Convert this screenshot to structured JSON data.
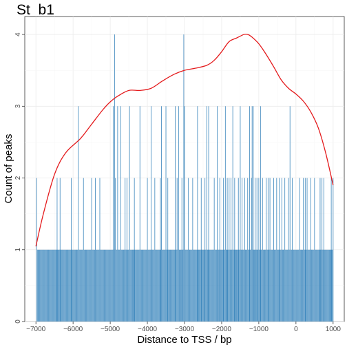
{
  "chart_data": {
    "type": "bar",
    "title": "St_b1",
    "xlabel": "Distance to TSS / bp",
    "ylabel": "Count of peaks",
    "xlim": [
      -7300,
      1300
    ],
    "ylim": [
      0,
      4.25
    ],
    "x_ticks": [
      -7000,
      -6000,
      -5000,
      -4000,
      -3000,
      -2000,
      -1000,
      0,
      1000
    ],
    "x_tick_labels": [
      "−7000",
      "−6000",
      "−5000",
      "−4000",
      "−3000",
      "−2000",
      "−1000",
      "0",
      "1000"
    ],
    "y_ticks": [
      0,
      1,
      2,
      3,
      4
    ],
    "y_tick_labels": [
      "0",
      "1",
      "2",
      "3",
      "4"
    ],
    "grid": true,
    "legend": "none",
    "bar_color": "#2f7fb8",
    "density_color": "#e41a1c",
    "bars": {
      "count_4": [
        -4880,
        -3020
      ],
      "count_3": [
        -5860,
        -4920,
        -4800,
        -4720,
        -4480,
        -4200,
        -3900,
        -3620,
        -3500,
        -3250,
        -3160,
        -3000,
        -2650,
        -2400,
        -2350,
        -2120,
        -1900,
        -1700,
        -1500,
        -1250,
        -1180,
        -1150,
        -950,
        -160
      ],
      "count_2": [
        -6980,
        -6430,
        -6350,
        -6050,
        -5860,
        -5720,
        -5500,
        -5400,
        -5280,
        -4860,
        -4600,
        -4550,
        -4350,
        -4000,
        -3800,
        -3650,
        -3450,
        -3200,
        -3070,
        -2900,
        -2780,
        -2550,
        -2450,
        -2200,
        -2050,
        -1950,
        -1850,
        -1800,
        -1750,
        -1650,
        -1550,
        -1450,
        -1380,
        -1300,
        -1200,
        -1100,
        -1050,
        -1000,
        -900,
        -800,
        -750,
        -700,
        -600,
        -520,
        -450,
        -380,
        -300,
        -200,
        -100,
        100,
        200,
        250,
        300,
        400,
        500,
        650,
        700,
        750,
        950,
        1000
      ],
      "count_1_start": -6980,
      "count_1_end": 1000,
      "count_1_step": 20
    },
    "density_curve": {
      "x": [
        -7000,
        -6800,
        -6500,
        -6200,
        -5800,
        -5500,
        -5200,
        -5000,
        -4800,
        -4500,
        -4200,
        -3900,
        -3600,
        -3300,
        -3000,
        -2700,
        -2400,
        -2200,
        -2000,
        -1800,
        -1600,
        -1400,
        -1300,
        -1200,
        -1000,
        -800,
        -600,
        -400,
        -200,
        0,
        200,
        400,
        600,
        800,
        1000
      ],
      "y": [
        1.05,
        1.5,
        2.05,
        2.35,
        2.55,
        2.75,
        2.95,
        3.06,
        3.14,
        3.22,
        3.22,
        3.25,
        3.35,
        3.44,
        3.5,
        3.53,
        3.57,
        3.64,
        3.76,
        3.9,
        3.95,
        4.0,
        4.0,
        3.97,
        3.87,
        3.72,
        3.55,
        3.37,
        3.25,
        3.17,
        3.07,
        2.92,
        2.7,
        2.35,
        1.9
      ]
    }
  }
}
